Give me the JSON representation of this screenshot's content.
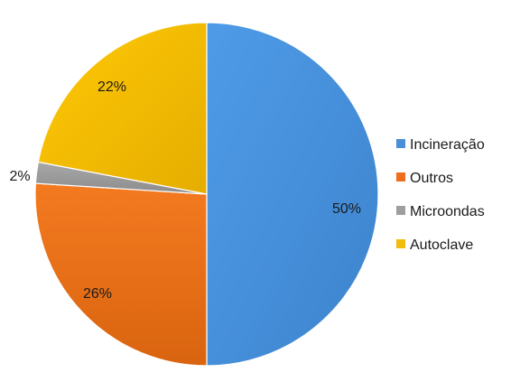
{
  "chart_data": {
    "type": "pie",
    "title": "",
    "legend_position": "right",
    "slices": [
      {
        "label": "Incineração",
        "value": 50,
        "display": "50%",
        "color": "#4a90d9"
      },
      {
        "label": "Outros",
        "value": 26,
        "display": "26%",
        "color": "#ee6e1c"
      },
      {
        "label": "Microondas",
        "value": 2,
        "display": "2%",
        "color": "#9e9e9e"
      },
      {
        "label": "Autoclave",
        "value": 22,
        "display": "22%",
        "color": "#f2bc0c"
      }
    ]
  }
}
